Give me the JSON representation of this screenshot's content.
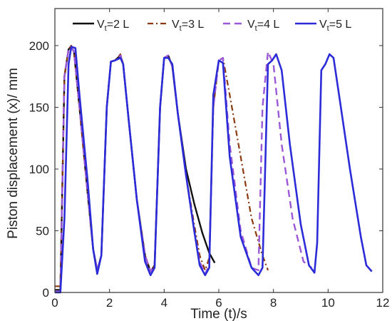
{
  "chart_data": {
    "type": "line",
    "xlabel": "Time (t)/s",
    "ylabel": "Piston displacement (x)/ mm",
    "xlim": [
      0,
      12
    ],
    "ylim": [
      0,
      230
    ],
    "xticks": [
      0,
      2,
      4,
      6,
      8,
      10,
      12
    ],
    "yticks": [
      0,
      50,
      100,
      150,
      200
    ],
    "legend_position": "top",
    "series": [
      {
        "name": "Vt=2 L",
        "legend_main": "V",
        "legend_sub": "t",
        "legend_rest": "=2 L",
        "color": "#111111",
        "dash": "",
        "width": 2.4,
        "x": [
          0,
          0.2,
          0.35,
          0.5,
          0.6,
          0.7,
          0.9,
          1.2,
          1.4,
          1.55,
          1.7,
          1.9,
          2.05,
          2.2,
          2.4,
          2.5,
          2.7,
          3.0,
          3.3,
          3.5,
          3.65,
          3.85,
          4.0,
          4.15,
          4.3,
          4.5,
          4.8,
          5.1,
          5.4,
          5.65,
          5.85
        ],
        "y": [
          2,
          2,
          175,
          197,
          199,
          195,
          150,
          80,
          35,
          18,
          30,
          150,
          187,
          188,
          192,
          185,
          140,
          75,
          30,
          17,
          22,
          150,
          190,
          192,
          183,
          145,
          100,
          72,
          48,
          32,
          24
        ]
      },
      {
        "name": "Vt=3 L",
        "legend_main": "V",
        "legend_sub": "t",
        "legend_rest": "=3 L",
        "color": "#8B3A10",
        "dash": "8,4,2,4",
        "width": 2.2,
        "x": [
          0,
          0.2,
          0.35,
          0.5,
          0.6,
          0.7,
          0.9,
          1.2,
          1.4,
          1.55,
          1.7,
          1.9,
          2.05,
          2.2,
          2.4,
          2.5,
          2.7,
          3.0,
          3.3,
          3.5,
          3.65,
          3.85,
          4.0,
          4.15,
          4.3,
          4.5,
          4.8,
          5.1,
          5.3,
          5.5,
          5.65,
          5.8,
          6.0,
          6.15,
          6.4,
          6.8,
          7.2,
          7.6,
          7.8
        ],
        "y": [
          5,
          5,
          175,
          197,
          200,
          195,
          150,
          80,
          35,
          18,
          30,
          150,
          187,
          188,
          193,
          185,
          140,
          75,
          30,
          17,
          22,
          150,
          190,
          192,
          183,
          145,
          95,
          55,
          30,
          18,
          28,
          150,
          188,
          190,
          160,
          110,
          60,
          30,
          18
        ]
      },
      {
        "name": "Vt=4 L",
        "legend_main": "V",
        "legend_sub": "t",
        "legend_rest": "=4 L",
        "color": "#9B59D8",
        "dash": "10,6",
        "width": 2.4,
        "x": [
          0,
          0.2,
          0.35,
          0.5,
          0.6,
          0.7,
          0.9,
          1.2,
          1.4,
          1.55,
          1.7,
          1.9,
          2.05,
          2.2,
          2.4,
          2.5,
          2.7,
          3.0,
          3.3,
          3.5,
          3.65,
          3.85,
          4.0,
          4.15,
          4.3,
          4.5,
          4.8,
          5.1,
          5.3,
          5.5,
          5.65,
          5.8,
          6.0,
          6.15,
          6.4,
          6.8,
          7.2,
          7.45,
          7.6,
          7.8,
          8.0,
          8.3,
          8.7,
          9.1,
          9.4
        ],
        "y": [
          1,
          1,
          175,
          197,
          199,
          195,
          150,
          80,
          35,
          18,
          30,
          150,
          187,
          188,
          192,
          185,
          140,
          75,
          30,
          17,
          22,
          150,
          190,
          192,
          183,
          145,
          95,
          50,
          25,
          15,
          22,
          150,
          188,
          190,
          120,
          50,
          20,
          18,
          150,
          195,
          185,
          120,
          60,
          25,
          20
        ]
      },
      {
        "name": "Vt=5 L",
        "legend_main": "V",
        "legend_sub": "t",
        "legend_rest": "=5 L",
        "color": "#2B2BD8",
        "dash": "",
        "width": 2.6,
        "x": [
          0,
          0.2,
          0.35,
          0.5,
          0.6,
          0.75,
          0.9,
          1.2,
          1.4,
          1.55,
          1.7,
          1.9,
          2.05,
          2.2,
          2.4,
          2.5,
          2.7,
          3.0,
          3.3,
          3.5,
          3.65,
          3.85,
          4.0,
          4.15,
          4.3,
          4.5,
          4.8,
          5.1,
          5.3,
          5.5,
          5.65,
          5.8,
          6.0,
          6.15,
          6.4,
          6.8,
          7.2,
          7.45,
          7.6,
          7.8,
          7.95,
          8.1,
          8.3,
          8.6,
          9.0,
          9.3,
          9.5,
          9.6,
          9.75,
          9.9,
          10.05,
          10.2,
          10.4,
          10.8,
          11.2,
          11.4,
          11.6
        ],
        "y": [
          0,
          0,
          60,
          185,
          199,
          198,
          160,
          90,
          35,
          15,
          30,
          150,
          187,
          188,
          190,
          185,
          140,
          75,
          25,
          14,
          20,
          150,
          190,
          190,
          185,
          145,
          95,
          50,
          22,
          14,
          20,
          160,
          188,
          186,
          110,
          45,
          20,
          14,
          20,
          185,
          188,
          193,
          180,
          120,
          55,
          22,
          16,
          40,
          180,
          185,
          193,
          190,
          160,
          100,
          45,
          22,
          17
        ]
      }
    ]
  }
}
